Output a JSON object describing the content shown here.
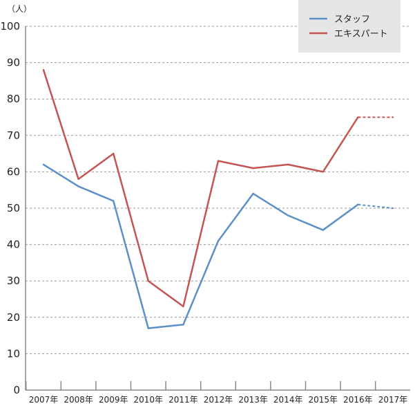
{
  "chart_data": {
    "type": "line",
    "unit_label": "（人）",
    "categories": [
      "2007年",
      "2008年",
      "2009年",
      "2010年",
      "2011年",
      "2012年",
      "2013年",
      "2014年",
      "2015年",
      "2016年",
      "2017年"
    ],
    "ylim": [
      0,
      100
    ],
    "yticks": [
      "0",
      "10",
      "20",
      "30",
      "40",
      "50",
      "60",
      "70",
      "80",
      "90",
      "100"
    ],
    "grid": true,
    "legend_position": "top-right",
    "series": [
      {
        "name": "スタッフ",
        "color": "#5b8fc7",
        "values": [
          62,
          56,
          52,
          17,
          18,
          41,
          54,
          48,
          44,
          51,
          50
        ],
        "dashed_from_index": 9
      },
      {
        "name": "エキスパート",
        "color": "#c45451",
        "values": [
          88,
          58,
          65,
          30,
          23,
          63,
          61,
          62,
          60,
          75,
          75
        ],
        "dashed_from_index": 9
      }
    ]
  }
}
